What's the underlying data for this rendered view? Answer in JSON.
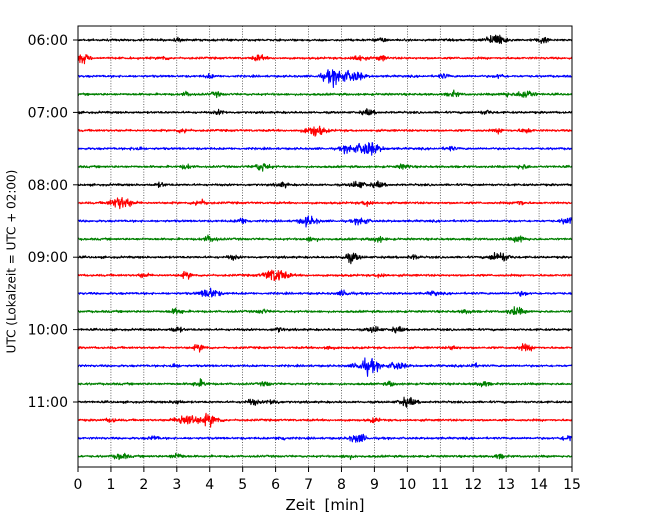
{
  "chart_data": {
    "type": "line",
    "title": "",
    "xlabel": "Zeit  [min]",
    "ylabel": "UTC (Lokalzeit = UTC + 02:00)",
    "xlim": [
      0,
      15
    ],
    "x_ticks": [
      "0",
      "1",
      "2",
      "3",
      "4",
      "5",
      "6",
      "7",
      "8",
      "9",
      "10",
      "11",
      "12",
      "13",
      "14",
      "15"
    ],
    "y_tick_labels": [
      "06:00",
      "07:00",
      "08:00",
      "09:00",
      "10:00",
      "11:00"
    ],
    "grid": "vertical dotted at each minute",
    "rows_per_hour": 4,
    "row_colors": [
      "#000000",
      "#ff0000",
      "#0000ff",
      "#008000"
    ],
    "series": [
      {
        "start": "06:00",
        "events": [
          [
            12.7,
            3.0
          ],
          [
            14.1,
            1.5
          ],
          [
            3.0,
            0.8
          ],
          [
            9.2,
            1.0
          ]
        ]
      },
      {
        "start": "06:15",
        "events": [
          [
            0.1,
            2.2
          ],
          [
            5.5,
            1.4
          ],
          [
            8.5,
            1.6
          ],
          [
            9.2,
            1.2
          ],
          [
            2.6,
            0.9
          ]
        ]
      },
      {
        "start": "06:30",
        "events": [
          [
            7.8,
            3.8
          ],
          [
            8.4,
            2.5
          ],
          [
            4.0,
            0.9
          ],
          [
            11.1,
            1.0
          ],
          [
            12.8,
            1.0
          ]
        ]
      },
      {
        "start": "06:45",
        "events": [
          [
            13.6,
            2.2
          ],
          [
            3.3,
            1.0
          ],
          [
            4.2,
            1.0
          ],
          [
            11.4,
            1.3
          ],
          [
            13.0,
            1.0
          ]
        ]
      },
      {
        "start": "07:00",
        "events": [
          [
            8.8,
            1.4
          ],
          [
            4.3,
            1.0
          ],
          [
            12.4,
            1.0
          ]
        ]
      },
      {
        "start": "07:15",
        "events": [
          [
            7.2,
            2.8
          ],
          [
            3.2,
            1.2
          ],
          [
            13.6,
            1.2
          ],
          [
            12.8,
            1.0
          ]
        ]
      },
      {
        "start": "07:30",
        "events": [
          [
            8.8,
            3.6
          ],
          [
            8.2,
            1.8
          ],
          [
            1.8,
            1.0
          ],
          [
            11.3,
            1.0
          ]
        ]
      },
      {
        "start": "07:45",
        "events": [
          [
            5.6,
            2.0
          ],
          [
            3.3,
            1.1
          ],
          [
            9.9,
            1.2
          ],
          [
            13.5,
            1.1
          ]
        ]
      },
      {
        "start": "08:00",
        "events": [
          [
            8.5,
            1.8
          ],
          [
            9.1,
            1.4
          ],
          [
            6.2,
            1.2
          ],
          [
            2.5,
            1.0
          ]
        ]
      },
      {
        "start": "08:15",
        "events": [
          [
            1.3,
            3.2
          ],
          [
            3.7,
            1.6
          ],
          [
            8.8,
            1.3
          ],
          [
            13.4,
            1.2
          ]
        ]
      },
      {
        "start": "08:30",
        "events": [
          [
            7.0,
            2.4
          ],
          [
            8.6,
            1.8
          ],
          [
            5.0,
            1.4
          ],
          [
            14.9,
            1.8
          ]
        ]
      },
      {
        "start": "08:45",
        "events": [
          [
            4.0,
            1.6
          ],
          [
            9.1,
            1.4
          ],
          [
            13.4,
            1.6
          ],
          [
            7.1,
            1.2
          ]
        ]
      },
      {
        "start": "09:00",
        "events": [
          [
            8.3,
            2.2
          ],
          [
            12.8,
            2.6
          ],
          [
            4.7,
            1.0
          ],
          [
            10.2,
            1.0
          ]
        ]
      },
      {
        "start": "09:15",
        "events": [
          [
            6.0,
            3.5
          ],
          [
            3.3,
            1.4
          ],
          [
            2.0,
            1.0
          ],
          [
            9.2,
            1.0
          ]
        ]
      },
      {
        "start": "09:30",
        "events": [
          [
            4.0,
            2.6
          ],
          [
            8.1,
            1.4
          ],
          [
            10.8,
            1.0
          ],
          [
            13.5,
            1.0
          ]
        ]
      },
      {
        "start": "09:45",
        "events": [
          [
            3.0,
            1.4
          ],
          [
            5.6,
            1.0
          ],
          [
            11.8,
            1.0
          ],
          [
            13.3,
            2.0
          ]
        ]
      },
      {
        "start": "10:00",
        "events": [
          [
            3.0,
            1.3
          ],
          [
            9.0,
            1.5
          ],
          [
            9.7,
            1.3
          ],
          [
            6.1,
            1.0
          ]
        ]
      },
      {
        "start": "10:15",
        "events": [
          [
            3.7,
            1.5
          ],
          [
            11.4,
            1.0
          ],
          [
            13.6,
            1.6
          ],
          [
            7.6,
            1.0
          ]
        ]
      },
      {
        "start": "10:30",
        "events": [
          [
            8.8,
            3.6
          ],
          [
            9.7,
            2.0
          ],
          [
            2.9,
            1.0
          ],
          [
            12.0,
            1.0
          ]
        ]
      },
      {
        "start": "10:45",
        "events": [
          [
            3.7,
            1.6
          ],
          [
            12.3,
            1.3
          ],
          [
            5.7,
            1.0
          ],
          [
            9.5,
            1.0
          ]
        ]
      },
      {
        "start": "11:00",
        "events": [
          [
            10.0,
            2.2
          ],
          [
            5.3,
            1.4
          ],
          [
            5.9,
            1.3
          ],
          [
            3.0,
            1.0
          ]
        ]
      },
      {
        "start": "11:15",
        "events": [
          [
            3.3,
            3.2
          ],
          [
            4.0,
            2.8
          ],
          [
            1.0,
            1.0
          ],
          [
            9.0,
            1.0
          ]
        ]
      },
      {
        "start": "11:30",
        "events": [
          [
            8.5,
            2.2
          ],
          [
            14.9,
            1.6
          ],
          [
            6.2,
            1.0
          ],
          [
            2.3,
            1.0
          ]
        ]
      },
      {
        "start": "11:45",
        "events": [
          [
            1.3,
            1.6
          ],
          [
            3.0,
            1.4
          ],
          [
            8.2,
            1.0
          ],
          [
            12.8,
            1.0
          ]
        ]
      }
    ]
  }
}
